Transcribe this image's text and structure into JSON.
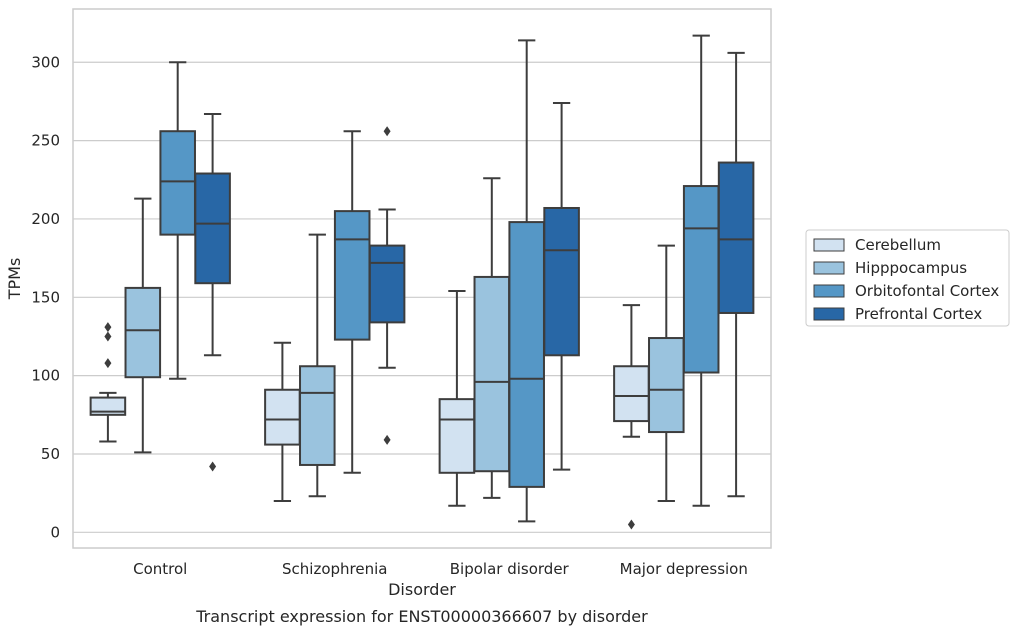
{
  "caption": "Transcript expression for ENST00000366607 by disorder",
  "chart_data": {
    "type": "box",
    "xlabel": "Disorder",
    "ylabel": "TPMs",
    "ylim": [
      -10,
      334
    ],
    "yticks": [
      0,
      50,
      100,
      150,
      200,
      250,
      300
    ],
    "grid": "horizontal",
    "legend_position": "right",
    "categories": [
      "Control",
      "Schizophrenia",
      "Bipolar disorder",
      "Major depression"
    ],
    "series": [
      {
        "name": "Cerebellum",
        "color": "#d2e2f1",
        "boxes": [
          {
            "whisker_low": 58,
            "q1": 75,
            "median": 77,
            "q3": 86,
            "whisker_high": 89,
            "outliers": [
              131,
              125,
              108
            ]
          },
          {
            "whisker_low": 20,
            "q1": 56,
            "median": 72,
            "q3": 91,
            "whisker_high": 121,
            "outliers": []
          },
          {
            "whisker_low": 17,
            "q1": 38,
            "median": 72,
            "q3": 85,
            "whisker_high": 154,
            "outliers": []
          },
          {
            "whisker_low": 61,
            "q1": 71,
            "median": 87,
            "q3": 106,
            "whisker_high": 145,
            "outliers": [
              5
            ]
          }
        ]
      },
      {
        "name": "Hipppocampus",
        "color": "#9ac3de",
        "boxes": [
          {
            "whisker_low": 51,
            "q1": 99,
            "median": 129,
            "q3": 156,
            "whisker_high": 213,
            "outliers": []
          },
          {
            "whisker_low": 23,
            "q1": 43,
            "median": 89,
            "q3": 106,
            "whisker_high": 190,
            "outliers": []
          },
          {
            "whisker_low": 22,
            "q1": 39,
            "median": 96,
            "q3": 163,
            "whisker_high": 226,
            "outliers": []
          },
          {
            "whisker_low": 20,
            "q1": 64,
            "median": 91,
            "q3": 124,
            "whisker_high": 183,
            "outliers": []
          }
        ]
      },
      {
        "name": "Orbitofontal Cortex",
        "color": "#5597c6",
        "boxes": [
          {
            "whisker_low": 98,
            "q1": 190,
            "median": 224,
            "q3": 256,
            "whisker_high": 300,
            "outliers": []
          },
          {
            "whisker_low": 38,
            "q1": 123,
            "median": 187,
            "q3": 205,
            "whisker_high": 256,
            "outliers": []
          },
          {
            "whisker_low": 7,
            "q1": 29,
            "median": 98,
            "q3": 198,
            "whisker_high": 314,
            "outliers": []
          },
          {
            "whisker_low": 17,
            "q1": 102,
            "median": 194,
            "q3": 221,
            "whisker_high": 317,
            "outliers": []
          }
        ]
      },
      {
        "name": "Prefrontal Cortex",
        "color": "#2867a6",
        "boxes": [
          {
            "whisker_low": 113,
            "q1": 159,
            "median": 197,
            "q3": 229,
            "whisker_high": 267,
            "outliers": [
              42
            ]
          },
          {
            "whisker_low": 105,
            "q1": 134,
            "median": 172,
            "q3": 183,
            "whisker_high": 206,
            "outliers": [
              256,
              59
            ]
          },
          {
            "whisker_low": 40,
            "q1": 113,
            "median": 180,
            "q3": 207,
            "whisker_high": 274,
            "outliers": []
          },
          {
            "whisker_low": 23,
            "q1": 140,
            "median": 187,
            "q3": 236,
            "whisker_high": 306,
            "outliers": []
          }
        ]
      }
    ]
  }
}
